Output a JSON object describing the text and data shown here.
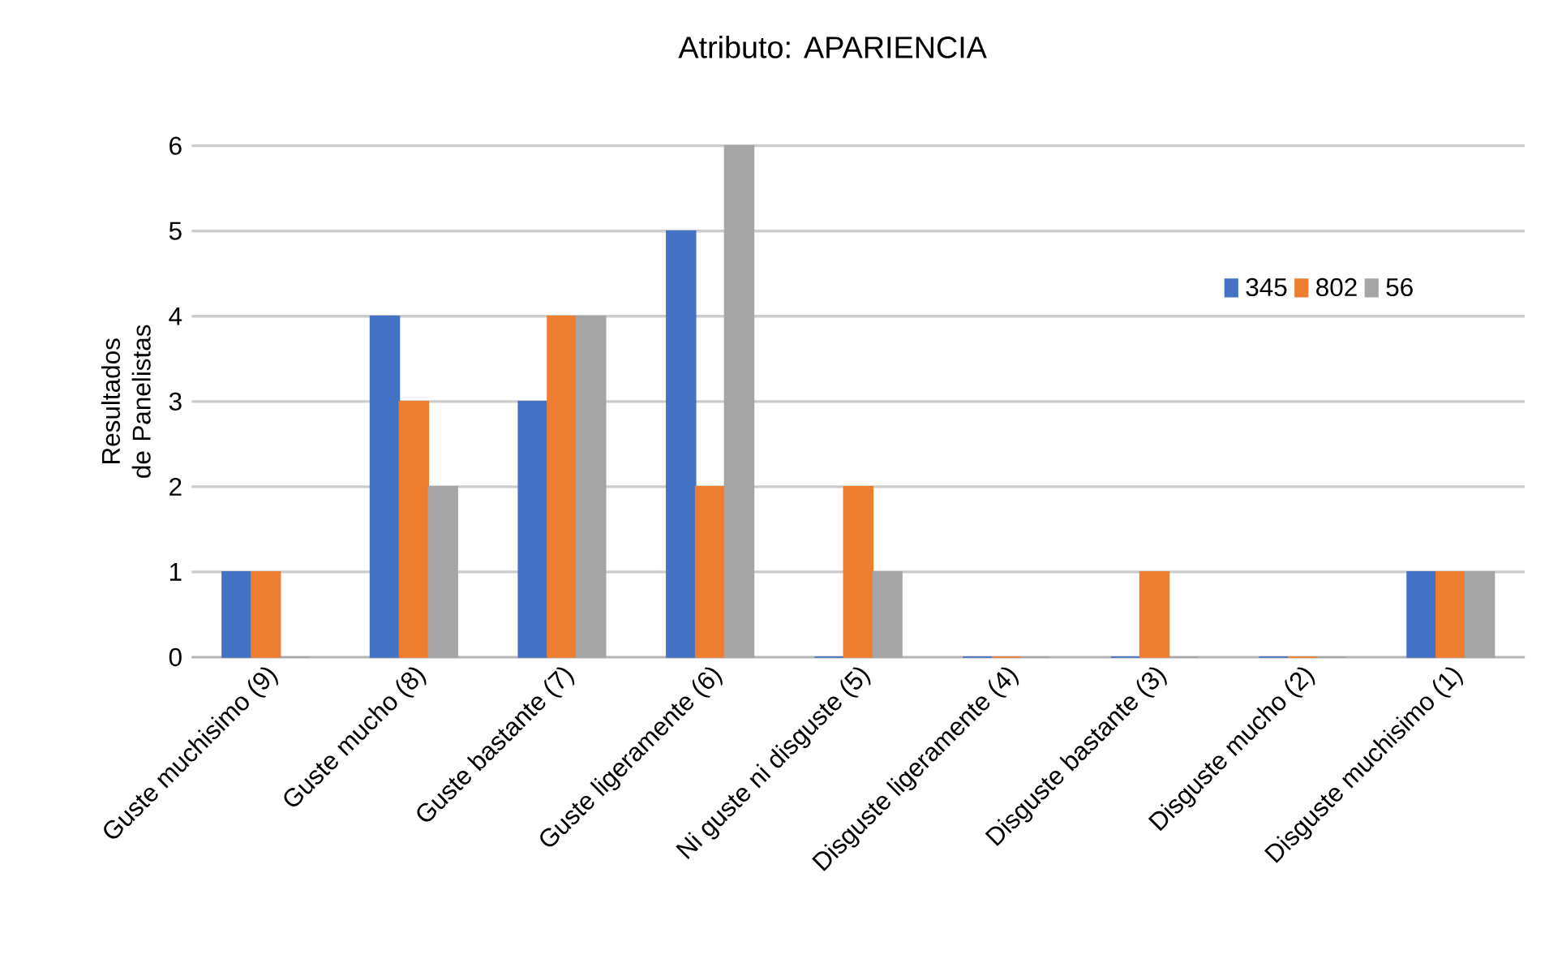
{
  "chart_data": {
    "type": "bar",
    "title": "Atributo: APARIENCIA",
    "ylabel": "Resultados de Panelistas",
    "categories": [
      "Guste muchisimo (9)",
      "Guste mucho (8)",
      "Guste bastante (7)",
      "Guste ligeramente (6)",
      "Ni guste ni disguste (5)",
      "Disguste ligeramente (4)",
      "Disguste bastante (3)",
      "Disguste mucho (2)",
      "Disguste muchisimo (1)"
    ],
    "series": [
      {
        "name": "345",
        "color": "#4472c4",
        "values": [
          1,
          4,
          3,
          5,
          0,
          0,
          0,
          0,
          1
        ]
      },
      {
        "name": "802",
        "color": "#ed7d31",
        "values": [
          1,
          3,
          4,
          2,
          2,
          0,
          1,
          0,
          1
        ]
      },
      {
        "name": "56",
        "color": "#a5a5a5",
        "values": [
          0,
          2,
          4,
          6,
          1,
          0,
          0,
          0,
          1
        ]
      }
    ],
    "ylim": [
      0,
      6
    ],
    "yticks": [
      0,
      1,
      2,
      3,
      4,
      5,
      6
    ],
    "grid": "y",
    "legend": "top right"
  }
}
